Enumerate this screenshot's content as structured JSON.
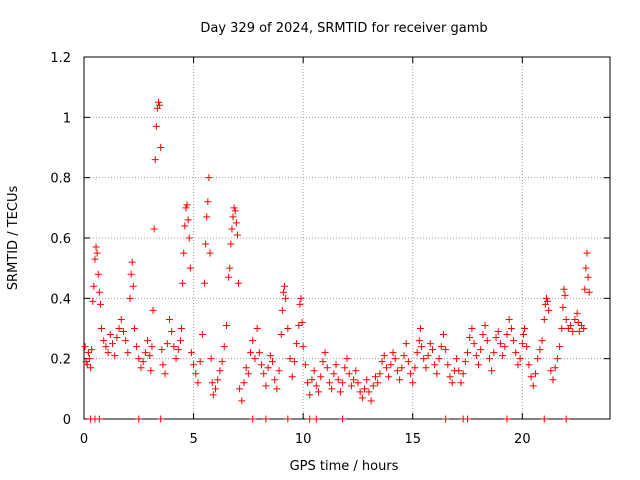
{
  "chart_data": {
    "type": "scatter",
    "title": "Day 329 of 2024, SRMTID for receiver gamb",
    "xlabel": "GPS time / hours",
    "ylabel": "SRMTID / TECUs",
    "xlim": [
      0,
      24
    ],
    "ylim": [
      0,
      1.2
    ],
    "xticks": [
      0,
      5,
      10,
      15,
      20
    ],
    "yticks": [
      0,
      0.2,
      0.4,
      0.6,
      0.8,
      1,
      1.2
    ],
    "xtick_labels": [
      "0",
      "5",
      "10",
      "15",
      "20"
    ],
    "ytick_labels": [
      "0",
      "0.2",
      "0.4",
      "0.6",
      "0.8",
      "1",
      "1.2"
    ],
    "grid": true,
    "marker": "+",
    "series_color": "#ff0000",
    "series": [
      {
        "name": "SRMTID",
        "points": [
          [
            0.05,
            0.24
          ],
          [
            0.1,
            0.19
          ],
          [
            0.15,
            0.18
          ],
          [
            0.2,
            0.22
          ],
          [
            0.25,
            0.2
          ],
          [
            0.3,
            0.17
          ],
          [
            0.35,
            0.23
          ],
          [
            0.4,
            0.39
          ],
          [
            0.45,
            0.44
          ],
          [
            0.5,
            0.53
          ],
          [
            0.55,
            0.57
          ],
          [
            0.6,
            0.55
          ],
          [
            0.65,
            0.48
          ],
          [
            0.7,
            0.42
          ],
          [
            0.75,
            0.38
          ],
          [
            0.8,
            0.3
          ],
          [
            0.9,
            0.26
          ],
          [
            1.0,
            0.24
          ],
          [
            1.1,
            0.22
          ],
          [
            1.2,
            0.28
          ],
          [
            1.3,
            0.25
          ],
          [
            1.4,
            0.21
          ],
          [
            1.5,
            0.27
          ],
          [
            1.6,
            0.3
          ],
          [
            1.7,
            0.33
          ],
          [
            1.8,
            0.29
          ],
          [
            1.9,
            0.26
          ],
          [
            2.0,
            0.22
          ],
          [
            2.1,
            0.4
          ],
          [
            2.15,
            0.48
          ],
          [
            2.2,
            0.52
          ],
          [
            2.25,
            0.44
          ],
          [
            2.3,
            0.3
          ],
          [
            2.4,
            0.24
          ],
          [
            2.5,
            0.2
          ],
          [
            2.6,
            0.17
          ],
          [
            2.7,
            0.19
          ],
          [
            2.8,
            0.22
          ],
          [
            2.9,
            0.26
          ],
          [
            3.0,
            0.21
          ],
          [
            3.05,
            0.16
          ],
          [
            3.1,
            0.24
          ],
          [
            3.15,
            0.36
          ],
          [
            3.2,
            0.63
          ],
          [
            3.25,
            0.86
          ],
          [
            3.3,
            0.97
          ],
          [
            3.35,
            1.03
          ],
          [
            3.4,
            1.05
          ],
          [
            3.45,
            1.04
          ],
          [
            3.5,
            0.9
          ],
          [
            3.55,
            0.23
          ],
          [
            3.6,
            0.18
          ],
          [
            3.7,
            0.15
          ],
          [
            3.8,
            0.25
          ],
          [
            3.9,
            0.33
          ],
          [
            4.0,
            0.29
          ],
          [
            4.1,
            0.24
          ],
          [
            4.2,
            0.2
          ],
          [
            4.3,
            0.23
          ],
          [
            4.4,
            0.26
          ],
          [
            4.45,
            0.3
          ],
          [
            4.5,
            0.45
          ],
          [
            4.55,
            0.55
          ],
          [
            4.6,
            0.64
          ],
          [
            4.65,
            0.7
          ],
          [
            4.7,
            0.71
          ],
          [
            4.75,
            0.66
          ],
          [
            4.8,
            0.6
          ],
          [
            4.85,
            0.5
          ],
          [
            4.9,
            0.22
          ],
          [
            5.0,
            0.18
          ],
          [
            5.1,
            0.15
          ],
          [
            5.2,
            0.12
          ],
          [
            5.3,
            0.19
          ],
          [
            5.4,
            0.28
          ],
          [
            5.5,
            0.45
          ],
          [
            5.55,
            0.58
          ],
          [
            5.6,
            0.67
          ],
          [
            5.65,
            0.72
          ],
          [
            5.7,
            0.8
          ],
          [
            5.75,
            0.55
          ],
          [
            5.8,
            0.2
          ],
          [
            5.85,
            0.12
          ],
          [
            5.9,
            0.08
          ],
          [
            6.0,
            0.1
          ],
          [
            6.1,
            0.13
          ],
          [
            6.2,
            0.16
          ],
          [
            6.3,
            0.19
          ],
          [
            6.4,
            0.24
          ],
          [
            6.5,
            0.31
          ],
          [
            6.6,
            0.47
          ],
          [
            6.65,
            0.5
          ],
          [
            6.7,
            0.58
          ],
          [
            6.75,
            0.63
          ],
          [
            6.8,
            0.67
          ],
          [
            6.85,
            0.7
          ],
          [
            6.9,
            0.69
          ],
          [
            6.95,
            0.65
          ],
          [
            7.0,
            0.61
          ],
          [
            7.05,
            0.45
          ],
          [
            7.1,
            0.1
          ],
          [
            7.2,
            0.06
          ],
          [
            7.3,
            0.12
          ],
          [
            7.4,
            0.17
          ],
          [
            7.5,
            0.15
          ],
          [
            7.6,
            0.22
          ],
          [
            7.7,
            0.26
          ],
          [
            7.8,
            0.2
          ],
          [
            7.9,
            0.3
          ],
          [
            8.0,
            0.22
          ],
          [
            8.1,
            0.18
          ],
          [
            8.2,
            0.15
          ],
          [
            8.3,
            0.11
          ],
          [
            8.4,
            0.17
          ],
          [
            8.5,
            0.21
          ],
          [
            8.6,
            0.19
          ],
          [
            8.7,
            0.13
          ],
          [
            8.8,
            0.1
          ],
          [
            8.9,
            0.16
          ],
          [
            9.0,
            0.28
          ],
          [
            9.05,
            0.36
          ],
          [
            9.1,
            0.42
          ],
          [
            9.15,
            0.44
          ],
          [
            9.2,
            0.4
          ],
          [
            9.3,
            0.3
          ],
          [
            9.4,
            0.2
          ],
          [
            9.5,
            0.14
          ],
          [
            9.6,
            0.19
          ],
          [
            9.7,
            0.25
          ],
          [
            9.8,
            0.31
          ],
          [
            9.85,
            0.38
          ],
          [
            9.9,
            0.4
          ],
          [
            9.95,
            0.32
          ],
          [
            10.0,
            0.24
          ],
          [
            10.1,
            0.18
          ],
          [
            10.2,
            0.12
          ],
          [
            10.3,
            0.08
          ],
          [
            10.4,
            0.13
          ],
          [
            10.5,
            0.16
          ],
          [
            10.6,
            0.11
          ],
          [
            10.7,
            0.09
          ],
          [
            10.8,
            0.14
          ],
          [
            10.9,
            0.19
          ],
          [
            11.0,
            0.22
          ],
          [
            11.1,
            0.17
          ],
          [
            11.2,
            0.12
          ],
          [
            11.3,
            0.1
          ],
          [
            11.4,
            0.15
          ],
          [
            11.5,
            0.18
          ],
          [
            11.6,
            0.13
          ],
          [
            11.7,
            0.09
          ],
          [
            11.8,
            0.12
          ],
          [
            11.9,
            0.17
          ],
          [
            12.0,
            0.2
          ],
          [
            12.1,
            0.15
          ],
          [
            12.2,
            0.11
          ],
          [
            12.3,
            0.13
          ],
          [
            12.4,
            0.16
          ],
          [
            12.5,
            0.12
          ],
          [
            12.6,
            0.09
          ],
          [
            12.7,
            0.07
          ],
          [
            12.8,
            0.1
          ],
          [
            12.9,
            0.13
          ],
          [
            13.0,
            0.09
          ],
          [
            13.1,
            0.06
          ],
          [
            13.2,
            0.11
          ],
          [
            13.3,
            0.14
          ],
          [
            13.4,
            0.12
          ],
          [
            13.5,
            0.15
          ],
          [
            13.6,
            0.19
          ],
          [
            13.7,
            0.21
          ],
          [
            13.8,
            0.17
          ],
          [
            13.9,
            0.14
          ],
          [
            14.0,
            0.18
          ],
          [
            14.1,
            0.22
          ],
          [
            14.2,
            0.2
          ],
          [
            14.3,
            0.16
          ],
          [
            14.4,
            0.13
          ],
          [
            14.5,
            0.17
          ],
          [
            14.6,
            0.21
          ],
          [
            14.7,
            0.25
          ],
          [
            14.8,
            0.19
          ],
          [
            14.9,
            0.15
          ],
          [
            15.0,
            0.12
          ],
          [
            15.1,
            0.17
          ],
          [
            15.2,
            0.22
          ],
          [
            15.3,
            0.26
          ],
          [
            15.35,
            0.3
          ],
          [
            15.4,
            0.24
          ],
          [
            15.5,
            0.2
          ],
          [
            15.6,
            0.17
          ],
          [
            15.7,
            0.21
          ],
          [
            15.8,
            0.25
          ],
          [
            15.9,
            0.23
          ],
          [
            16.0,
            0.18
          ],
          [
            16.1,
            0.15
          ],
          [
            16.2,
            0.2
          ],
          [
            16.3,
            0.24
          ],
          [
            16.4,
            0.28
          ],
          [
            16.5,
            0.23
          ],
          [
            16.6,
            0.18
          ],
          [
            16.7,
            0.14
          ],
          [
            16.8,
            0.12
          ],
          [
            16.9,
            0.16
          ],
          [
            17.0,
            0.2
          ],
          [
            17.1,
            0.16
          ],
          [
            17.2,
            0.12
          ],
          [
            17.3,
            0.15
          ],
          [
            17.4,
            0.19
          ],
          [
            17.5,
            0.22
          ],
          [
            17.6,
            0.27
          ],
          [
            17.7,
            0.3
          ],
          [
            17.8,
            0.25
          ],
          [
            17.9,
            0.21
          ],
          [
            18.0,
            0.18
          ],
          [
            18.1,
            0.23
          ],
          [
            18.2,
            0.28
          ],
          [
            18.3,
            0.31
          ],
          [
            18.4,
            0.26
          ],
          [
            18.5,
            0.2
          ],
          [
            18.6,
            0.16
          ],
          [
            18.7,
            0.22
          ],
          [
            18.8,
            0.27
          ],
          [
            18.9,
            0.29
          ],
          [
            19.0,
            0.25
          ],
          [
            19.1,
            0.21
          ],
          [
            19.2,
            0.24
          ],
          [
            19.3,
            0.28
          ],
          [
            19.4,
            0.33
          ],
          [
            19.5,
            0.3
          ],
          [
            19.6,
            0.26
          ],
          [
            19.7,
            0.22
          ],
          [
            19.8,
            0.18
          ],
          [
            19.9,
            0.2
          ],
          [
            20.0,
            0.25
          ],
          [
            20.05,
            0.28
          ],
          [
            20.1,
            0.3
          ],
          [
            20.2,
            0.24
          ],
          [
            20.3,
            0.18
          ],
          [
            20.4,
            0.14
          ],
          [
            20.5,
            0.11
          ],
          [
            20.6,
            0.15
          ],
          [
            20.7,
            0.2
          ],
          [
            20.8,
            0.23
          ],
          [
            20.9,
            0.26
          ],
          [
            21.0,
            0.33
          ],
          [
            21.05,
            0.38
          ],
          [
            21.1,
            0.4
          ],
          [
            21.15,
            0.39
          ],
          [
            21.2,
            0.36
          ],
          [
            21.3,
            0.16
          ],
          [
            21.4,
            0.13
          ],
          [
            21.5,
            0.17
          ],
          [
            21.6,
            0.2
          ],
          [
            21.7,
            0.24
          ],
          [
            21.8,
            0.3
          ],
          [
            21.85,
            0.37
          ],
          [
            21.9,
            0.43
          ],
          [
            21.95,
            0.41
          ],
          [
            22.0,
            0.33
          ],
          [
            22.1,
            0.3
          ],
          [
            22.2,
            0.31
          ],
          [
            22.3,
            0.29
          ],
          [
            22.4,
            0.33
          ],
          [
            22.5,
            0.35
          ],
          [
            22.55,
            0.32
          ],
          [
            22.6,
            0.29
          ],
          [
            22.7,
            0.31
          ],
          [
            22.8,
            0.3
          ],
          [
            22.85,
            0.43
          ],
          [
            22.9,
            0.5
          ],
          [
            22.95,
            0.55
          ],
          [
            23.0,
            0.47
          ],
          [
            23.05,
            0.42
          ]
        ]
      }
    ],
    "zero_marks_x": [
      0.3,
      0.5,
      0.7,
      2.5,
      3.5,
      7.7,
      8.3,
      9.3,
      10.3,
      10.6,
      11.8,
      16.5,
      17.3,
      17.5,
      19.3,
      21.0,
      22.0
    ]
  }
}
